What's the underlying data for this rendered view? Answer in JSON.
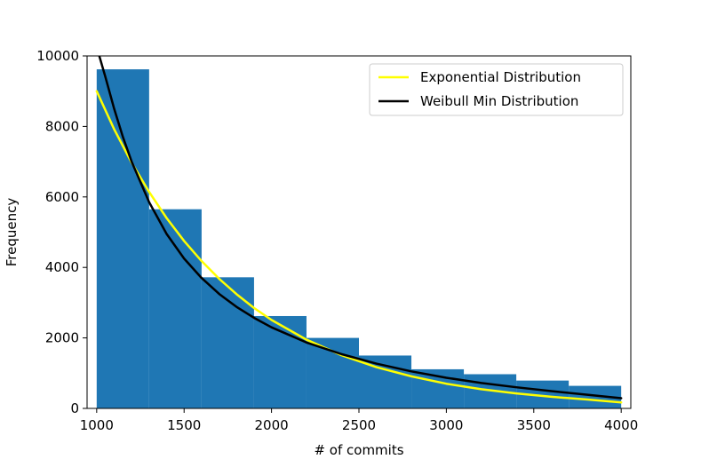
{
  "chart_data": {
    "type": "bar",
    "title": "",
    "xlabel": "# of commits",
    "ylabel": "Frequency",
    "xlim": [
      945,
      4055
    ],
    "ylim": [
      0,
      10000
    ],
    "xticks": [
      1000,
      1500,
      2000,
      2500,
      3000,
      3500,
      4000
    ],
    "yticks": [
      0,
      2000,
      4000,
      6000,
      8000,
      10000
    ],
    "grid": false,
    "legend_position": "top-right",
    "histogram": {
      "color": "#1f77b4",
      "bins": [
        {
          "x0": 1000,
          "x1": 1300,
          "value": 9620
        },
        {
          "x0": 1300,
          "x1": 1600,
          "value": 5650
        },
        {
          "x0": 1600,
          "x1": 1900,
          "value": 3720
        },
        {
          "x0": 1900,
          "x1": 2200,
          "value": 2620
        },
        {
          "x0": 2200,
          "x1": 2500,
          "value": 2000
        },
        {
          "x0": 2500,
          "x1": 2800,
          "value": 1500
        },
        {
          "x0": 2800,
          "x1": 3100,
          "value": 1110
        },
        {
          "x0": 3100,
          "x1": 3400,
          "value": 970
        },
        {
          "x0": 3400,
          "x1": 3700,
          "value": 790
        },
        {
          "x0": 3700,
          "x1": 4000,
          "value": 640
        }
      ]
    },
    "series": [
      {
        "name": "Exponential Distribution",
        "color": "#ffff00",
        "x": [
          1000,
          1100,
          1200,
          1300,
          1400,
          1500,
          1600,
          1700,
          1800,
          1900,
          2000,
          2200,
          2400,
          2600,
          2800,
          3000,
          3200,
          3400,
          3600,
          3800,
          4000
        ],
        "y": [
          9000,
          7920,
          6970,
          6140,
          5400,
          4750,
          4180,
          3680,
          3240,
          2850,
          2510,
          1950,
          1510,
          1170,
          910,
          700,
          545,
          425,
          330,
          255,
          170
        ]
      },
      {
        "name": "Weibull Min Distribution",
        "color": "#000000",
        "x": [
          1015,
          1050,
          1100,
          1150,
          1200,
          1300,
          1400,
          1500,
          1600,
          1700,
          1800,
          1900,
          2000,
          2200,
          2400,
          2600,
          2800,
          3000,
          3200,
          3400,
          3600,
          3800,
          4000
        ],
        "y": [
          10000,
          9400,
          8500,
          7700,
          7000,
          5850,
          4950,
          4250,
          3700,
          3250,
          2880,
          2570,
          2300,
          1870,
          1540,
          1270,
          1050,
          870,
          720,
          600,
          490,
          390,
          290
        ]
      }
    ]
  }
}
